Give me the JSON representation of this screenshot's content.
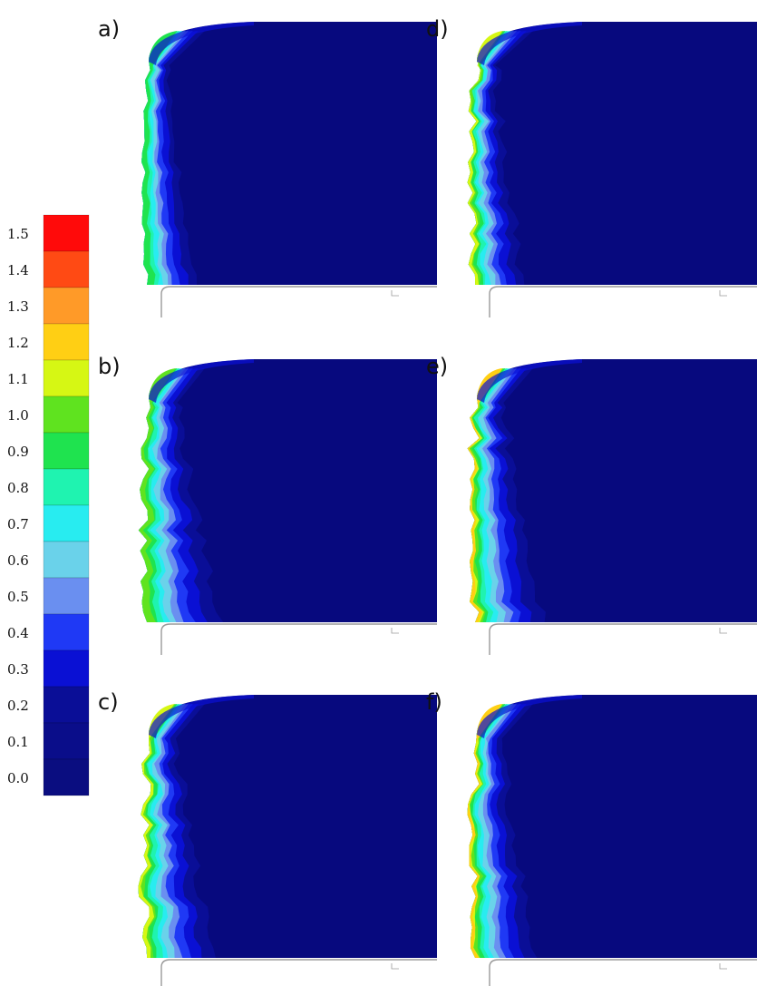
{
  "colorbar": {
    "levels": [
      {
        "label": "1.5",
        "color": "#ff0a0a"
      },
      {
        "label": "1.4",
        "color": "#ff4a14"
      },
      {
        "label": "1.3",
        "color": "#ff9a28"
      },
      {
        "label": "1.2",
        "color": "#ffcf14"
      },
      {
        "label": "1.1",
        "color": "#d6f714"
      },
      {
        "label": "1.0",
        "color": "#5fe31f"
      },
      {
        "label": "0.9",
        "color": "#1fe34f"
      },
      {
        "label": "0.8",
        "color": "#1ff3b0"
      },
      {
        "label": "0.7",
        "color": "#28ecf0"
      },
      {
        "label": "0.6",
        "color": "#6ad2ea"
      },
      {
        "label": "0.5",
        "color": "#6a8ff0"
      },
      {
        "label": "0.4",
        "color": "#1f39f5"
      },
      {
        "label": "0.3",
        "color": "#0a10d4"
      },
      {
        "label": "0.2",
        "color": "#0a0e97"
      },
      {
        "label": "0.1",
        "color": "#0a0d8a"
      },
      {
        "label": "0.0",
        "color": "#0a0d80"
      }
    ]
  },
  "panels": [
    {
      "id": "a",
      "label": "a)",
      "roughness": 0.4,
      "intensity": 0.55,
      "width_factor": 0.8
    },
    {
      "id": "d",
      "label": "d)",
      "roughness": 1.0,
      "intensity": 0.8,
      "width_factor": 0.8
    },
    {
      "id": "b",
      "label": "b)",
      "roughness": 0.8,
      "intensity": 0.7,
      "width_factor": 1.2
    },
    {
      "id": "e",
      "label": "e)",
      "roughness": 1.0,
      "intensity": 0.9,
      "width_factor": 1.1
    },
    {
      "id": "c",
      "label": "c)",
      "roughness": 0.9,
      "intensity": 0.85,
      "width_factor": 1.1
    },
    {
      "id": "f",
      "label": "f)",
      "roughness": 1.0,
      "intensity": 0.9,
      "width_factor": 1.0
    }
  ],
  "colors": {
    "background_field": "#07097e",
    "outline": "#9a9a9a"
  }
}
